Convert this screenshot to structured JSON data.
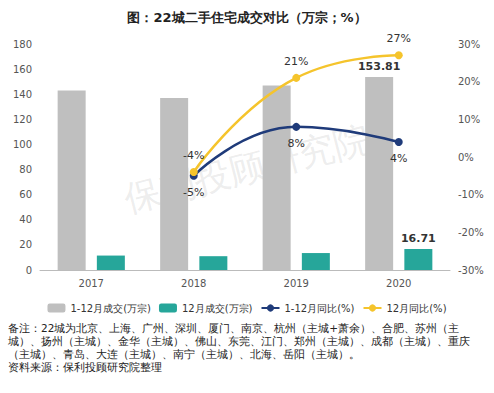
{
  "chart_data": {
    "type": "bar",
    "title": "图：22城二手住宅成交对比（万宗；%）",
    "watermark": "保利投顾研究院",
    "categories": [
      "2017",
      "2018",
      "2019",
      "2020"
    ],
    "series": [
      {
        "name": "1-12月成交(万宗)",
        "type": "bar",
        "color": "#bfbfbf",
        "values": [
          143,
          137,
          147,
          153.81
        ],
        "value_labels": [
          null,
          null,
          null,
          "153.81"
        ]
      },
      {
        "name": "12月成交(万宗)",
        "type": "bar",
        "color": "#26a69a",
        "values": [
          11.5,
          11,
          13.5,
          16.71
        ],
        "value_labels": [
          null,
          null,
          null,
          "16.71"
        ]
      },
      {
        "name": "1-12月同比(%)",
        "type": "line",
        "axis": "y2",
        "color": "#1f3b7a",
        "marker": "circle",
        "values": [
          null,
          -5,
          8,
          4
        ],
        "value_labels": [
          null,
          "-5%",
          "8%",
          "4%"
        ]
      },
      {
        "name": "12月同比(%)",
        "type": "line",
        "axis": "y2",
        "color": "#f5c42c",
        "marker": "circle",
        "values": [
          null,
          -4,
          21,
          27
        ],
        "value_labels": [
          null,
          "-4%",
          "21%",
          "27%"
        ]
      }
    ],
    "ylim": [
      0,
      180
    ],
    "yticks": [
      0,
      20,
      40,
      60,
      80,
      100,
      120,
      140,
      160,
      180
    ],
    "y2lim": [
      -30,
      30
    ],
    "y2ticks": [
      {
        "value": -30,
        "label": "-30%"
      },
      {
        "value": -20,
        "label": "-20%"
      },
      {
        "value": -10,
        "label": "-10%"
      },
      {
        "value": 0,
        "label": "0%"
      },
      {
        "value": 10,
        "label": "10%"
      },
      {
        "value": 20,
        "label": "20%"
      },
      {
        "value": 30,
        "label": "30%"
      }
    ],
    "grid": false,
    "legend": "bottom",
    "data_labels": true,
    "notes": "备注：22城为北京、上海、广州、深圳、厦门、南京、杭州（主城+萧余）、合肥、苏州（主城）、扬州（主城）、金华（主城）、佛山、东莞、江门、郑州（主城）、成都（主城）、重庆（主城）、青岛、大连（主城）、南宁（主城）、北海、岳阳（主城）。",
    "source": "资料来源：保利投顾研究院整理"
  }
}
